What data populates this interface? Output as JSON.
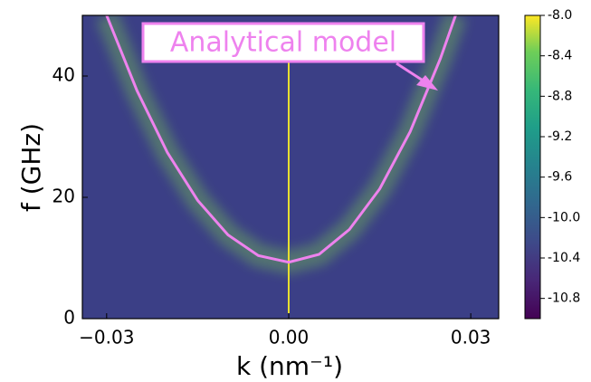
{
  "chart_data": {
    "type": "heatmap-curve",
    "xlabel": "k (nm⁻¹)",
    "ylabel": "f (GHz)",
    "annotation": "Analytical model",
    "xlim": [
      -0.034,
      0.0346
    ],
    "ylim": [
      0,
      50
    ],
    "xticks": [
      {
        "value": -0.03,
        "label": "−0.03"
      },
      {
        "value": 0,
        "label": "0.00"
      },
      {
        "value": 0.03,
        "label": "0.03"
      }
    ],
    "yticks": [
      0,
      20,
      40
    ],
    "curve": {
      "name": "Analytical model",
      "color": "#ee82ee",
      "x": [
        -0.03,
        -0.025,
        -0.02,
        -0.015,
        -0.01,
        -0.005,
        0,
        0.005,
        0.01,
        0.015,
        0.02,
        0.025,
        0.0275
      ],
      "values": [
        50,
        37.6,
        27.4,
        19.5,
        13.8,
        10.4,
        9.3,
        10.6,
        14.7,
        21.4,
        30.8,
        42.9,
        50
      ]
    },
    "colorbar": {
      "lim": [
        -11.0,
        -8.0
      ],
      "ticks": [
        {
          "value": -8,
          "label": "-8.0"
        },
        -8.4,
        -8.8,
        -9.2,
        -9.6,
        {
          "value": -10,
          "label": "-10.0"
        },
        -10.4,
        -10.8
      ]
    }
  }
}
